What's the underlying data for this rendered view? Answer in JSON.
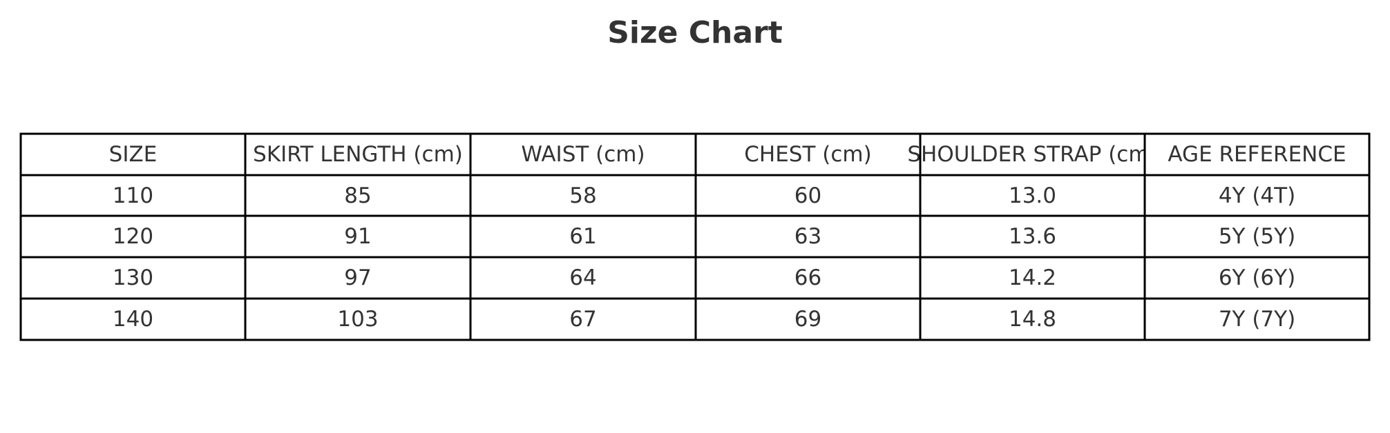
{
  "title": "Size Chart",
  "table": {
    "headers": [
      "SIZE",
      "SKIRT LENGTH (cm)",
      "WAIST (cm)",
      "CHEST (cm)",
      "SHOULDER STRAP (cm)",
      "AGE REFERENCE"
    ],
    "rows": [
      [
        "110",
        "85",
        "58",
        "60",
        "13.0",
        "4Y (4T)"
      ],
      [
        "120",
        "91",
        "61",
        "63",
        "13.6",
        "5Y (5Y)"
      ],
      [
        "130",
        "97",
        "64",
        "66",
        "14.2",
        "6Y (6Y)"
      ],
      [
        "140",
        "103",
        "67",
        "69",
        "14.8",
        "7Y (7Y)"
      ]
    ]
  }
}
